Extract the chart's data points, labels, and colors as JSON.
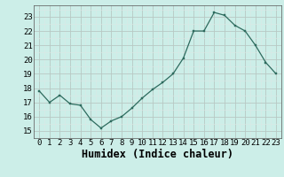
{
  "x": [
    0,
    1,
    2,
    3,
    4,
    5,
    6,
    7,
    8,
    9,
    10,
    11,
    12,
    13,
    14,
    15,
    16,
    17,
    18,
    19,
    20,
    21,
    22,
    23
  ],
  "y": [
    17.8,
    17.0,
    17.5,
    16.9,
    16.8,
    15.8,
    15.2,
    15.7,
    16.0,
    16.6,
    17.3,
    17.9,
    18.4,
    19.0,
    20.1,
    22.0,
    22.0,
    23.3,
    23.1,
    22.4,
    22.0,
    21.0,
    19.8,
    19.0
  ],
  "xlabel": "Humidex (Indice chaleur)",
  "ylim": [
    14.5,
    23.8
  ],
  "xlim": [
    -0.5,
    23.5
  ],
  "yticks": [
    15,
    16,
    17,
    18,
    19,
    20,
    21,
    22,
    23
  ],
  "xticks": [
    0,
    1,
    2,
    3,
    4,
    5,
    6,
    7,
    8,
    9,
    10,
    11,
    12,
    13,
    14,
    15,
    16,
    17,
    18,
    19,
    20,
    21,
    22,
    23
  ],
  "line_color": "#2d6b5e",
  "marker_color": "#2d6b5e",
  "bg_color": "#cceee8",
  "grid_major_color": "#b8c8c4",
  "grid_minor_color": "#dce8e6",
  "tick_label_fontsize": 6.5,
  "xlabel_fontsize": 8.5,
  "spine_color": "#555555"
}
